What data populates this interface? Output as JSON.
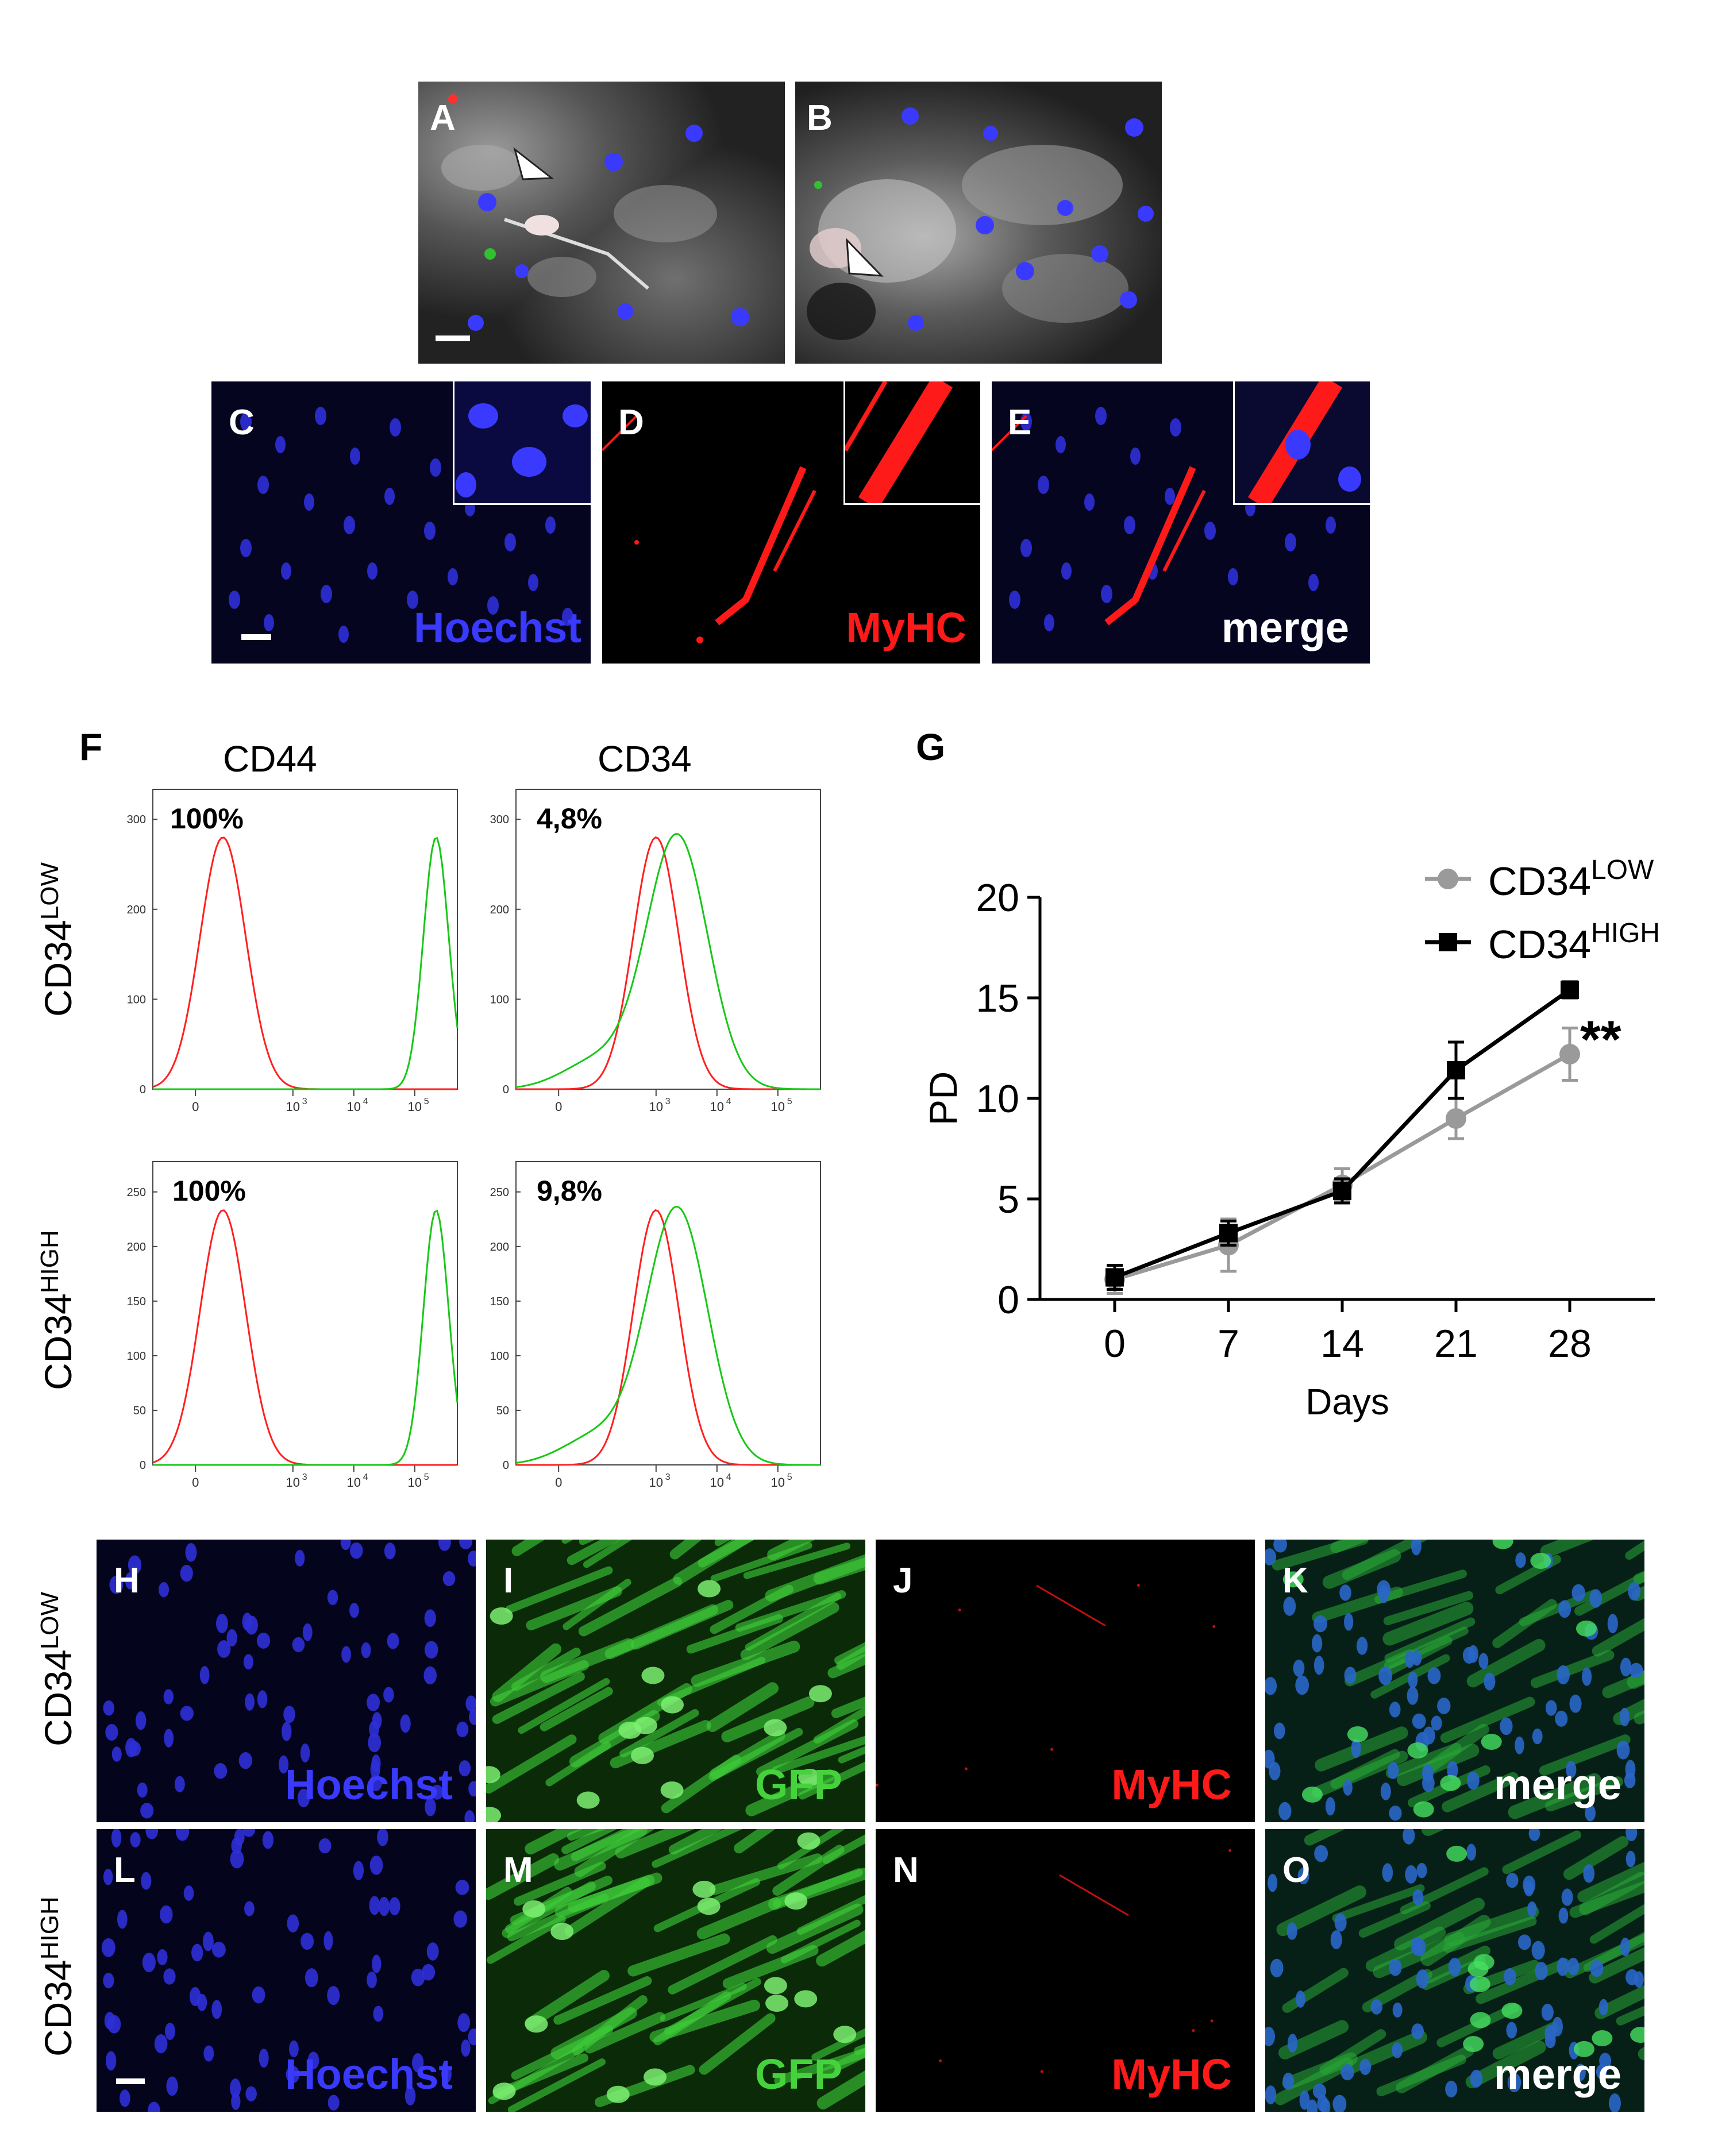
{
  "panels": {
    "A": "A",
    "B": "B",
    "C": "C",
    "D": "D",
    "E": "E",
    "F": "F",
    "G": "G",
    "H": "H",
    "I": "I",
    "J": "J",
    "K": "K",
    "L": "L",
    "M": "M",
    "N": "N",
    "O": "O"
  },
  "stains": {
    "hoechst": "Hoechst",
    "myhc": "MyHC",
    "merge": "merge",
    "gfp": "GFP"
  },
  "colors": {
    "hoechst": "#3a3aff",
    "myhc": "#ff1a1a",
    "gfp": "#46d23c",
    "low_series": "#9a9a9a",
    "high_series": "#000000",
    "isotype_line": "#ff2020",
    "marker_line": "#18c818"
  },
  "rows": {
    "low_base": "CD34",
    "low_sup": "LOW",
    "high_base": "CD34",
    "high_sup": "HIGH"
  },
  "flow": {
    "col_cd44": "CD44",
    "col_cd34": "CD34",
    "pct_cd44_low": "100%",
    "pct_cd34_low": "4,8%",
    "pct_cd44_high": "100%",
    "pct_cd34_high": "9,8%",
    "x_ticks": [
      "0",
      "10",
      "10",
      "10"
    ],
    "x_tick_exp": [
      "",
      "3",
      "4",
      "5"
    ],
    "y_ticks_top": [
      "0",
      "100",
      "200",
      "300"
    ],
    "y_ticks_bottom": [
      "0",
      "50",
      "100",
      "150",
      "200",
      "250"
    ]
  },
  "chart_data": {
    "type": "line",
    "x": [
      0,
      7,
      14,
      21,
      28
    ],
    "xlabel": "Days",
    "ylabel": "PD",
    "ylim": [
      0,
      20
    ],
    "yticks": [
      "0",
      "5",
      "10",
      "15",
      "20"
    ],
    "xticks": [
      "0",
      "7",
      "14",
      "21",
      "28"
    ],
    "legend_position": "top-right",
    "annotation": "**",
    "series": [
      {
        "name": "CD34LOW",
        "name_base": "CD34",
        "name_sup": "LOW",
        "values": [
          1.0,
          2.7,
          5.7,
          9.0,
          12.2
        ],
        "errors": [
          0.7,
          1.3,
          0.8,
          1.0,
          1.3
        ],
        "color": "#9a9a9a",
        "marker": "circle"
      },
      {
        "name": "CD34HIGH",
        "name_base": "CD34",
        "name_sup": "HIGH",
        "values": [
          1.1,
          3.3,
          5.4,
          11.4,
          15.4
        ],
        "errors": [
          0.6,
          0.6,
          0.6,
          1.4,
          0.4
        ],
        "color": "#000000",
        "marker": "square"
      }
    ]
  }
}
